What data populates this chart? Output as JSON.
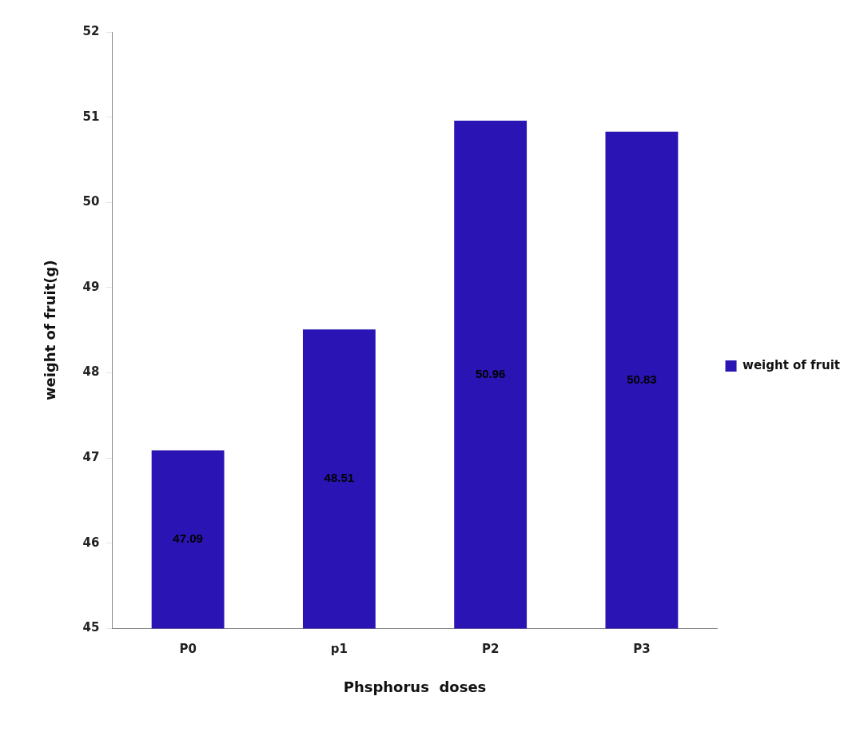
{
  "chart_data": {
    "type": "bar",
    "xlabel": "Phsphorus  doses",
    "ylabel": "weight of fruit(g)",
    "categories": [
      "P0",
      "p1",
      "P2",
      "P3"
    ],
    "series": [
      {
        "name": "weight of fruit",
        "color": "#2a14b4",
        "values": [
          47.09,
          48.51,
          50.96,
          50.83
        ]
      }
    ],
    "ylim": [
      45,
      52
    ],
    "yticks": [
      45,
      46,
      47,
      48,
      49,
      50,
      51,
      52
    ],
    "grid": false,
    "legend": "right",
    "data_labels": true
  }
}
